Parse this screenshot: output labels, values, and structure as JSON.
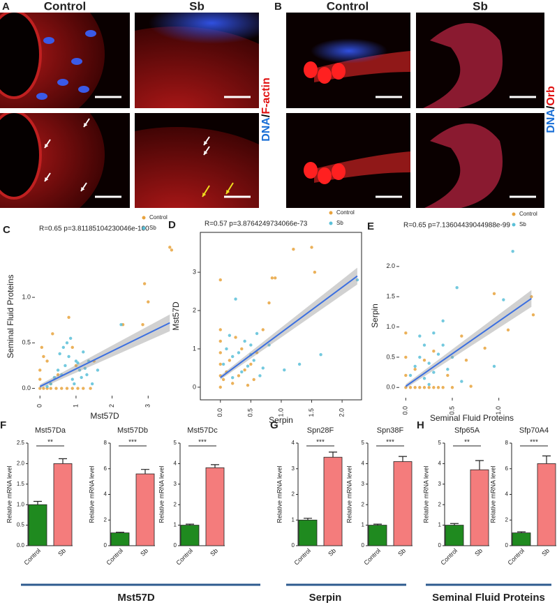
{
  "micrographs": [
    {
      "letter": "A",
      "columns": [
        "Control",
        "Sb"
      ],
      "stain": [
        {
          "text": "DNA",
          "color": "#1a6fd6"
        },
        {
          "text": "/",
          "color": "#000000"
        },
        {
          "text": "F-actin",
          "color": "#e01010"
        }
      ]
    },
    {
      "letter": "B",
      "columns": [
        "Control",
        "Sb"
      ],
      "stain": [
        {
          "text": "DNA",
          "color": "#1a6fd6"
        },
        {
          "text": "/",
          "color": "#000000"
        },
        {
          "text": "Orb",
          "color": "#e01010"
        }
      ]
    }
  ],
  "groups": [
    {
      "label": "Mst57D"
    },
    {
      "label": "Serpin"
    },
    {
      "label": "Seminal Fluid Proteins"
    }
  ],
  "chart_data": [
    {
      "type": "scatter",
      "panel": "C",
      "annotation": "R=0.65 p=3.81185104230046e-100",
      "xlabel": "Mst57D",
      "ylabel": "Seminal Fluid Proteins",
      "xlim": [
        -0.14,
        3.73
      ],
      "ylim": [
        -0.08,
        1.66
      ],
      "xticks": [
        0,
        1,
        2,
        3
      ],
      "yticks": [
        {
          "value": 0,
          "label": "0.0"
        },
        0.5,
        {
          "value": 1,
          "label": "1.0"
        }
      ],
      "series": [
        {
          "name": "Control",
          "color": "#e8a33d",
          "x": [
            0,
            0.1,
            0.2,
            0.3,
            0.45,
            0.6,
            0.75,
            0.9,
            1.05,
            1.2,
            1.4,
            0,
            0,
            0.05,
            0.2,
            0.35,
            0.5,
            0.8,
            1.0,
            2.9,
            3.6,
            3.65,
            2.85,
            3.0,
            0.9,
            1.5,
            0.3,
            0.1,
            2.3
          ],
          "y": [
            0,
            0,
            0,
            0,
            0,
            0,
            0,
            0,
            0,
            0,
            0,
            0.1,
            0.2,
            0.45,
            0.3,
            0.6,
            0.15,
            0.78,
            0.25,
            1.15,
            1.55,
            1.52,
            0.7,
            0.95,
            0.45,
            0.3,
            0.05,
            0.35,
            0.7
          ]
        },
        {
          "name": "Sb",
          "color": "#5bc0d8",
          "x": [
            0.3,
            0.5,
            0.6,
            0.7,
            0.8,
            0.9,
            1.0,
            1.1,
            1.2,
            1.3,
            1.45,
            0.4,
            0.65,
            0.85,
            1.05,
            1.25,
            0.55,
            0.95,
            1.6,
            2.25,
            0.75,
            1.15,
            0.2,
            1.35
          ],
          "y": [
            0.05,
            0.2,
            0.15,
            0.25,
            0.35,
            0.1,
            0.3,
            0.2,
            0.4,
            0.15,
            0.05,
            0.12,
            0.45,
            0.55,
            0.28,
            0.22,
            0.38,
            0.05,
            0.2,
            0.7,
            0.5,
            0.12,
            0.02,
            0.3
          ]
        }
      ],
      "fit": {
        "color": "#3b6fe0",
        "x": [
          0,
          3.6
        ],
        "y": [
          0.02,
          0.72
        ]
      }
    },
    {
      "type": "scatter",
      "panel": "D",
      "annotation": "R=0.57 p=3.8764249734066e-73",
      "xlabel": "Serpin",
      "ylabel": "Mst57D",
      "frame": true,
      "xlim": [
        -0.33,
        2.32
      ],
      "ylim": [
        -0.33,
        4.04
      ],
      "xticks": [
        {
          "value": 0,
          "label": "0.0"
        },
        0.5,
        {
          "value": 1,
          "label": "1.0"
        },
        1.5,
        {
          "value": 2,
          "label": "2.0"
        }
      ],
      "yticks": [
        0,
        1,
        2,
        3
      ],
      "series": [
        {
          "name": "Control",
          "color": "#e8a33d",
          "x": [
            0,
            0,
            0,
            0,
            0,
            0,
            0.05,
            0.1,
            0.2,
            0.3,
            0.4,
            0.5,
            0.6,
            0.25,
            0.35,
            0.45,
            0.55,
            0.7,
            0.9,
            1.2,
            1.5,
            1.55,
            0.8,
            0.85,
            0,
            0.15
          ],
          "y": [
            0,
            0.3,
            0.6,
            0.9,
            1.2,
            1.5,
            0.2,
            0.4,
            0.1,
            0.3,
            0.45,
            0.6,
            0.9,
            1.3,
            1.0,
            0.05,
            0.2,
            1.5,
            2.85,
            3.6,
            3.65,
            3.0,
            2.2,
            2.85,
            2.8,
            0.7
          ]
        },
        {
          "name": "Sb",
          "color": "#5bc0d8",
          "x": [
            0.05,
            0.1,
            0.2,
            0.3,
            0.35,
            0.4,
            0.5,
            0.55,
            0.6,
            0.65,
            0.7,
            0.25,
            0.45,
            0.15,
            0.8,
            1.05,
            1.3,
            1.65,
            2.25,
            0.2,
            0.5
          ],
          "y": [
            0.6,
            1.0,
            0.8,
            0.9,
            0.4,
            1.2,
            1.1,
            0.7,
            1.4,
            0.3,
            0.5,
            2.3,
            0.55,
            1.35,
            1.1,
            0.45,
            0.6,
            0.85,
            2.8,
            0.25,
            0.85
          ]
        }
      ],
      "fit": {
        "color": "#3b6fe0",
        "x": [
          0,
          2.25
        ],
        "y": [
          0.25,
          2.9
        ]
      }
    },
    {
      "type": "scatter",
      "panel": "E",
      "annotation": "R=0.65 p=7.13604439044988e-99",
      "xlabel": "Seminal Fluid Proteins",
      "ylabel": "Serpin",
      "xlim": [
        -0.07,
        1.49
      ],
      "ylim": [
        -0.17,
        2.54
      ],
      "xticks": [
        {
          "value": 0,
          "label": "0.0"
        },
        0.5,
        {
          "value": 1,
          "label": "1.0"
        }
      ],
      "yticks": [
        {
          "value": 0,
          "label": "0.0"
        },
        0.5,
        {
          "value": 1,
          "label": "1.0"
        },
        1.5,
        {
          "value": 2,
          "label": "2.0"
        }
      ],
      "series": [
        {
          "name": "Control",
          "color": "#e8a33d",
          "x": [
            0,
            0.05,
            0.1,
            0.15,
            0.2,
            0.25,
            0.3,
            0.35,
            0.4,
            0.5,
            0,
            0,
            0,
            0.1,
            0.2,
            0.3,
            0.45,
            0.6,
            0.7,
            0.85,
            1.1,
            1.35,
            1.37,
            0.95,
            0.65
          ],
          "y": [
            0,
            0,
            0,
            0,
            0,
            0,
            0,
            0,
            0,
            0,
            0.2,
            0.5,
            0.9,
            0.3,
            0.45,
            0.6,
            0.2,
            0.85,
            0.02,
            0.65,
            0.95,
            1.5,
            1.2,
            1.55,
            0.45
          ]
        },
        {
          "name": "Sb",
          "color": "#5bc0d8",
          "x": [
            0.05,
            0.1,
            0.15,
            0.2,
            0.25,
            0.3,
            0.35,
            0.4,
            0.45,
            0.55,
            0.2,
            0.3,
            0.15,
            0.5,
            0.95,
            1.15,
            1.05,
            0.6,
            0.4,
            0.25
          ],
          "y": [
            0.2,
            0.35,
            0.5,
            0.7,
            0.4,
            0.9,
            0.55,
            1.1,
            0.3,
            1.65,
            0.15,
            0.25,
            0.85,
            0.5,
            0.35,
            2.25,
            1.45,
            0.1,
            0.7,
            0.05
          ]
        }
      ],
      "fit": {
        "color": "#3b6fe0",
        "x": [
          0,
          1.35
        ],
        "y": [
          0.02,
          1.47
        ]
      }
    },
    {
      "type": "bar",
      "panel": "F",
      "title": "Mst57Da",
      "ylabel": "Relative mRNA level",
      "significance": "**",
      "categories": [
        "Control",
        "Sb"
      ],
      "values": [
        1.0,
        2.0
      ],
      "errors": [
        0.08,
        0.12
      ],
      "colors": [
        "#1f8a1f",
        "#f47c7c"
      ],
      "ylim": [
        0,
        2.5
      ],
      "yticks": [
        {
          "value": 0,
          "label": "0.0"
        },
        0.5,
        {
          "value": 1,
          "label": "1.0"
        },
        1.5,
        {
          "value": 2,
          "label": "2.0"
        },
        2.5
      ]
    },
    {
      "type": "bar",
      "title": "Mst57Db",
      "ylabel": "Relative mRNA level",
      "significance": "***",
      "categories": [
        "Control",
        "Sb"
      ],
      "values": [
        1.0,
        5.6
      ],
      "errors": [
        0.05,
        0.35
      ],
      "colors": [
        "#1f8a1f",
        "#f47c7c"
      ],
      "ylim": [
        0,
        8
      ],
      "yticks": [
        0,
        2,
        4,
        6,
        8
      ]
    },
    {
      "type": "bar",
      "title": "Mst57Dc",
      "ylabel": "Relative mRNA level",
      "significance": "***",
      "categories": [
        "Control",
        "Sb"
      ],
      "values": [
        1.0,
        3.8
      ],
      "errors": [
        0.05,
        0.15
      ],
      "colors": [
        "#1f8a1f",
        "#f47c7c"
      ],
      "ylim": [
        0,
        5
      ],
      "yticks": [
        0,
        1,
        2,
        3,
        4,
        5
      ]
    },
    {
      "type": "bar",
      "panel": "G",
      "title": "Spn28F",
      "ylabel": "Relative mRNA level",
      "significance": "***",
      "categories": [
        "Control",
        "Sb"
      ],
      "values": [
        1.0,
        3.45
      ],
      "errors": [
        0.07,
        0.2
      ],
      "colors": [
        "#1f8a1f",
        "#f47c7c"
      ],
      "ylim": [
        0,
        4
      ],
      "yticks": [
        0,
        1,
        2,
        3,
        4
      ]
    },
    {
      "type": "bar",
      "title": "Spn38F",
      "ylabel": "Relative mRNA level",
      "significance": "***",
      "categories": [
        "Control",
        "Sb"
      ],
      "values": [
        1.0,
        4.1
      ],
      "errors": [
        0.05,
        0.25
      ],
      "colors": [
        "#1f8a1f",
        "#f47c7c"
      ],
      "ylim": [
        0,
        5
      ],
      "yticks": [
        0,
        1,
        2,
        3,
        4,
        5
      ]
    },
    {
      "type": "bar",
      "panel": "H",
      "title": "Sfp65A",
      "ylabel": "Relative mRNA level",
      "significance": "**",
      "categories": [
        "Control",
        "Sb"
      ],
      "values": [
        1.0,
        3.7
      ],
      "errors": [
        0.08,
        0.45
      ],
      "colors": [
        "#1f8a1f",
        "#f47c7c"
      ],
      "ylim": [
        0,
        5
      ],
      "yticks": [
        0,
        1,
        2,
        3,
        4,
        5
      ]
    },
    {
      "type": "bar",
      "title": "Sfp70A4",
      "ylabel": "Relative mRNA level",
      "significance": "***",
      "categories": [
        "Control",
        "Sb"
      ],
      "values": [
        1.0,
        6.4
      ],
      "errors": [
        0.08,
        0.6
      ],
      "colors": [
        "#1f8a1f",
        "#f47c7c"
      ],
      "ylim": [
        0,
        8
      ],
      "yticks": [
        0,
        2,
        4,
        6,
        8
      ]
    }
  ]
}
